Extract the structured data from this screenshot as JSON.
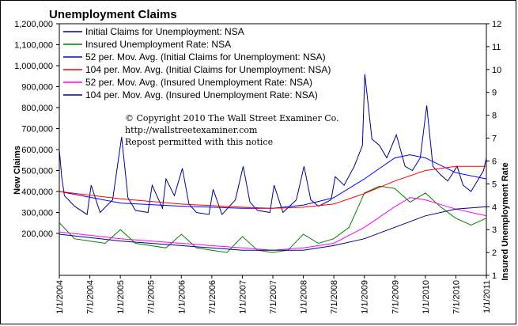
{
  "chart_data": {
    "type": "line",
    "title": "Unemployment Claims",
    "ylabel": "New Claims",
    "y2label": "Insured Unemployment Rate",
    "ylim": [
      0,
      1200000
    ],
    "y2lim": [
      1,
      12
    ],
    "yticks": [
      "1,200,000",
      "1,100,000",
      "1,000,000",
      "900,000",
      "800,000",
      "700,000",
      "600,000",
      "500,000",
      "400,000",
      "300,000",
      "200,000"
    ],
    "ytick_values": [
      1200000,
      1100000,
      1000000,
      900000,
      800000,
      700000,
      600000,
      500000,
      400000,
      300000,
      200000
    ],
    "y2ticks": [
      "12",
      "11",
      "10",
      "9",
      "8",
      "7",
      "6",
      "5",
      "4",
      "3",
      "2",
      "1"
    ],
    "y2tick_values": [
      12,
      11,
      10,
      9,
      8,
      7,
      6,
      5,
      4,
      3,
      2,
      1
    ],
    "xlim": [
      "2004-01-01",
      "2011-01-01"
    ],
    "xticks": [
      "1/1/2004",
      "7/1/2004",
      "1/1/2005",
      "7/1/2005",
      "1/1/2006",
      "7/1/2006",
      "1/1/2007",
      "7/1/2007",
      "1/1/2008",
      "7/1/2008",
      "1/1/2009",
      "7/1/2009",
      "1/1/2010",
      "7/1/2010",
      "1/1/2011"
    ],
    "grid": false,
    "legend_position": "top-left",
    "annotation": [
      "© Copyright 2010 The Wall Street Examiner Co.",
      "http://wallstreetexaminer.com",
      "Repost permitted with this notice"
    ],
    "series": [
      {
        "name": "Initial Claims for Unemployment: NSA",
        "axis": "left",
        "color": "#00008b",
        "x": [
          "2004-01-01",
          "2004-01-15",
          "2004-02-01",
          "2004-04-01",
          "2004-06-15",
          "2004-07-10",
          "2004-09-01",
          "2004-11-15",
          "2005-01-08",
          "2005-02-15",
          "2005-04-01",
          "2005-06-15",
          "2005-07-10",
          "2005-09-10",
          "2005-10-01",
          "2005-11-20",
          "2006-01-07",
          "2006-02-15",
          "2006-04-01",
          "2006-06-15",
          "2006-07-10",
          "2006-09-01",
          "2006-11-20",
          "2007-01-06",
          "2007-02-15",
          "2007-04-01",
          "2007-06-15",
          "2007-07-10",
          "2007-09-01",
          "2007-11-20",
          "2008-01-05",
          "2008-02-15",
          "2008-04-01",
          "2008-06-15",
          "2008-07-10",
          "2008-09-01",
          "2008-11-01",
          "2008-12-20",
          "2009-01-03",
          "2009-02-15",
          "2009-04-01",
          "2009-05-15",
          "2009-07-11",
          "2009-09-01",
          "2009-10-15",
          "2009-12-01",
          "2010-01-09",
          "2010-02-15",
          "2010-04-01",
          "2010-05-15",
          "2010-07-10",
          "2010-08-15",
          "2010-10-01",
          "2010-11-15",
          "2010-12-15",
          "2011-01-01"
        ],
        "values": [
          600000,
          470000,
          380000,
          330000,
          290000,
          430000,
          300000,
          360000,
          660000,
          370000,
          310000,
          300000,
          430000,
          320000,
          460000,
          380000,
          510000,
          340000,
          300000,
          290000,
          410000,
          290000,
          360000,
          520000,
          350000,
          310000,
          300000,
          430000,
          300000,
          360000,
          520000,
          360000,
          330000,
          360000,
          470000,
          430000,
          520000,
          620000,
          960000,
          650000,
          620000,
          560000,
          670000,
          520000,
          500000,
          560000,
          810000,
          520000,
          480000,
          450000,
          520000,
          430000,
          400000,
          460000,
          500000,
          560000
        ]
      },
      {
        "name": "Insured Unemployment Rate: NSA",
        "axis": "right",
        "color": "#008000",
        "x": [
          "2004-01-01",
          "2004-04-01",
          "2004-07-01",
          "2004-10-01",
          "2005-01-01",
          "2005-04-01",
          "2005-07-01",
          "2005-10-01",
          "2006-01-01",
          "2006-04-01",
          "2006-07-01",
          "2006-10-01",
          "2007-01-01",
          "2007-04-01",
          "2007-07-01",
          "2007-10-01",
          "2008-01-01",
          "2008-04-01",
          "2008-07-01",
          "2008-10-01",
          "2009-01-01",
          "2009-04-01",
          "2009-07-01",
          "2009-10-01",
          "2010-01-01",
          "2010-04-01",
          "2010-07-01",
          "2010-10-01",
          "2011-01-01"
        ],
        "values": [
          3.3,
          2.6,
          2.5,
          2.4,
          3.0,
          2.4,
          2.3,
          2.2,
          2.8,
          2.2,
          2.1,
          2.0,
          2.7,
          2.1,
          2.0,
          2.1,
          2.8,
          2.4,
          2.6,
          3.1,
          4.6,
          4.9,
          4.8,
          4.2,
          4.6,
          4.0,
          3.5,
          3.2,
          3.5
        ]
      },
      {
        "name": "52 per. Mov. Avg. (Initial Claims for Unemployment: NSA)",
        "axis": "left",
        "color": "#0000ff",
        "x": [
          "2004-01-01",
          "2005-01-01",
          "2006-01-01",
          "2007-01-01",
          "2007-07-01",
          "2008-01-01",
          "2008-07-01",
          "2009-01-01",
          "2009-07-01",
          "2009-10-01",
          "2010-01-01",
          "2010-07-01",
          "2011-01-01"
        ],
        "values": [
          400000,
          345000,
          330000,
          320000,
          320000,
          335000,
          370000,
          460000,
          560000,
          575000,
          560000,
          490000,
          460000
        ]
      },
      {
        "name": "104 per. Mov. Avg. (Initial Claims for Unemployment: NSA)",
        "axis": "left",
        "color": "#ff0000",
        "x": [
          "2004-01-01",
          "2005-01-01",
          "2006-01-01",
          "2007-01-01",
          "2007-07-01",
          "2008-01-01",
          "2008-07-01",
          "2009-01-01",
          "2009-07-01",
          "2010-01-01",
          "2010-07-01",
          "2011-01-01"
        ],
        "values": [
          400000,
          365000,
          340000,
          325000,
          320000,
          325000,
          340000,
          390000,
          450000,
          500000,
          520000,
          520000
        ]
      },
      {
        "name": "52 per. Mov. Avg. (Insured Unemployment Rate: NSA)",
        "axis": "right",
        "color": "#ff00ff",
        "x": [
          "2004-01-01",
          "2005-01-01",
          "2006-01-01",
          "2007-01-01",
          "2007-07-01",
          "2008-01-01",
          "2008-07-01",
          "2009-01-01",
          "2009-07-01",
          "2009-10-01",
          "2010-01-01",
          "2010-07-01",
          "2011-01-01"
        ],
        "values": [
          2.9,
          2.6,
          2.4,
          2.2,
          2.1,
          2.2,
          2.4,
          3.1,
          4.0,
          4.4,
          4.3,
          3.9,
          3.6
        ]
      },
      {
        "name": "104 per. Mov. Avg. (Insured Unemployment Rate: NSA)",
        "axis": "right",
        "color": "#000080",
        "x": [
          "2004-01-01",
          "2005-01-01",
          "2006-01-01",
          "2007-01-01",
          "2007-07-01",
          "2008-01-01",
          "2008-07-01",
          "2009-01-01",
          "2009-07-01",
          "2010-01-01",
          "2010-07-01",
          "2011-01-01"
        ],
        "values": [
          2.8,
          2.5,
          2.3,
          2.1,
          2.1,
          2.1,
          2.3,
          2.6,
          3.1,
          3.6,
          3.9,
          4.0
        ]
      }
    ]
  }
}
